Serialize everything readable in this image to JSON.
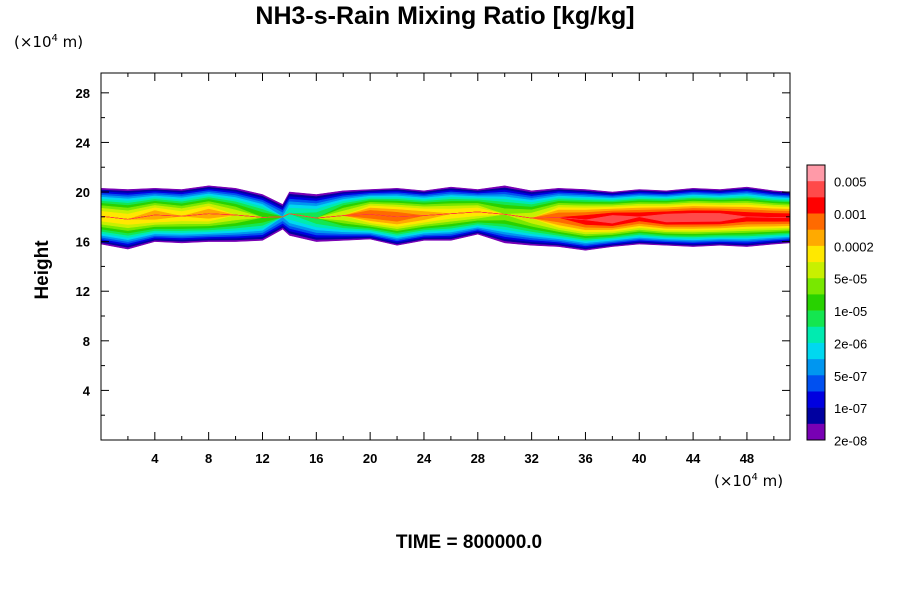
{
  "title": "NH3-s-Rain Mixing Ratio [kg/kg]",
  "y_unit_prefix": "(×10",
  "y_unit_exp": "4",
  "y_unit_suffix": " m)",
  "x_unit_prefix": "(×10",
  "x_unit_exp": "4",
  "x_unit_suffix": " m)",
  "time_label": "TIME = 800000.0",
  "colorbar": {
    "colors": [
      "#ff9aa8",
      "#ff4a4a",
      "#ff0000",
      "#ff6a00",
      "#ffaa00",
      "#ffe800",
      "#c8f000",
      "#78e800",
      "#28d200",
      "#14e650",
      "#00ebb0",
      "#00d8f0",
      "#0096f0",
      "#0050f0",
      "#0000e0",
      "#0000a0",
      "#7800b4"
    ],
    "labels": [
      "0.005",
      "0.001",
      "0.0002",
      "5e-05",
      "1e-05",
      "2e-06",
      "5e-07",
      "1e-07",
      "2e-08"
    ]
  },
  "chart_data": {
    "type": "heatmap",
    "title": "NH3-s-Rain Mixing Ratio [kg/kg]",
    "xlabel": "",
    "ylabel": "Height",
    "x_unit": "×10^4 m",
    "y_unit": "×10^4 m",
    "xlim": [
      0,
      51.2
    ],
    "ylim": [
      0,
      29.6
    ],
    "x_ticks": [
      4,
      8,
      12,
      16,
      20,
      24,
      28,
      32,
      36,
      40,
      44,
      48
    ],
    "y_ticks": [
      4,
      8,
      12,
      16,
      20,
      24,
      28
    ],
    "layer": {
      "x": [
        0,
        2,
        4,
        6,
        8,
        10,
        12,
        13.5,
        14,
        16,
        18,
        20,
        22,
        24,
        26,
        28,
        30,
        32,
        34,
        36,
        38,
        40,
        42,
        44,
        46,
        48,
        50,
        51.2
      ],
      "top": [
        20.3,
        20.2,
        20.3,
        20.2,
        20.5,
        20.3,
        19.8,
        19.0,
        20.0,
        19.8,
        20.1,
        20.2,
        20.3,
        20.1,
        20.4,
        20.2,
        20.5,
        20.1,
        20.3,
        20.2,
        20.0,
        20.2,
        20.1,
        20.3,
        20.2,
        20.4,
        20.1,
        20.0
      ],
      "bottom": [
        15.8,
        15.4,
        16.0,
        15.9,
        16.0,
        16.0,
        16.1,
        17.0,
        16.5,
        16.0,
        16.1,
        16.2,
        15.7,
        16.1,
        16.1,
        16.6,
        15.9,
        15.7,
        15.6,
        15.3,
        15.6,
        15.8,
        15.7,
        15.6,
        15.7,
        15.6,
        15.8,
        15.9
      ],
      "core_level": [
        5,
        5,
        4,
        5,
        4,
        6,
        8,
        12,
        10,
        9,
        6,
        3,
        3,
        4,
        5,
        5,
        7,
        6,
        3,
        2,
        1,
        2,
        1,
        1,
        1,
        2,
        2,
        2
      ]
    },
    "colorbar_levels": [
      "0.005",
      "0.001",
      "0.0002",
      "5e-05",
      "1e-05",
      "2e-06",
      "5e-07",
      "1e-07",
      "2e-08"
    ]
  }
}
